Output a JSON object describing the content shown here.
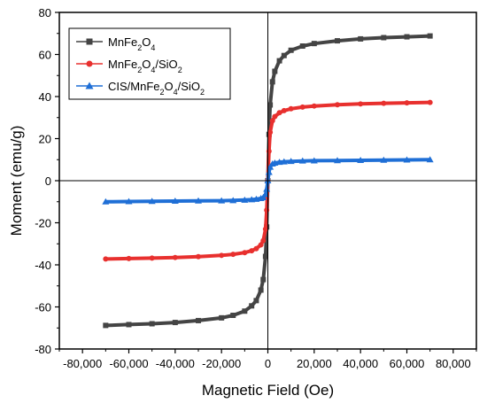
{
  "chart_data": {
    "type": "line",
    "title": "",
    "xlabel": "Magnetic Field (Oe)",
    "ylabel": "Moment (emu/g)",
    "xlim": [
      -90000,
      90000
    ],
    "ylim": [
      -80,
      80
    ],
    "xticks": [
      "-80,000",
      "-60,000",
      "-40,000",
      "-20,000",
      "0",
      "20,000",
      "40,000",
      "60,000",
      "80,000"
    ],
    "yticks": [
      "-80",
      "-60",
      "-40",
      "-20",
      "0",
      "20",
      "40",
      "60",
      "80"
    ],
    "grid": false,
    "legend_position": "top-left",
    "series": [
      {
        "name": "MnFe2O4",
        "label_parts": [
          [
            "MnFe",
            ""
          ],
          [
            "2",
            "sub"
          ],
          [
            "O",
            ""
          ],
          [
            "4",
            "sub"
          ]
        ],
        "color": "#444444",
        "marker": "square",
        "x": [
          -70000,
          -60000,
          -50000,
          -40000,
          -30000,
          -20000,
          -15000,
          -10000,
          -7000,
          -5000,
          -3000,
          -2000,
          -1000,
          -500,
          0,
          500,
          1000,
          2000,
          3000,
          5000,
          7000,
          10000,
          15000,
          20000,
          30000,
          40000,
          50000,
          60000,
          70000
        ],
        "y": [
          -68.8,
          -68.4,
          -68.0,
          -67.4,
          -66.5,
          -65.2,
          -64.0,
          -62.0,
          -59.5,
          -57.0,
          -52.0,
          -47.0,
          -36.0,
          -22.0,
          0,
          22.0,
          36.0,
          47.0,
          52.0,
          57.0,
          59.5,
          62.0,
          64.0,
          65.2,
          66.5,
          67.4,
          68.0,
          68.4,
          68.8
        ]
      },
      {
        "name": "MnFe2O4/SiO2",
        "label_parts": [
          [
            "MnFe",
            ""
          ],
          [
            "2",
            "sub"
          ],
          [
            "O",
            ""
          ],
          [
            "4",
            "sub"
          ],
          [
            "/SiO",
            ""
          ],
          [
            "2",
            "sub"
          ]
        ],
        "color": "#e8302e",
        "marker": "circle",
        "x": [
          -70000,
          -60000,
          -50000,
          -40000,
          -30000,
          -20000,
          -15000,
          -10000,
          -7000,
          -5000,
          -3000,
          -2000,
          -1000,
          -500,
          0,
          500,
          1000,
          2000,
          3000,
          5000,
          7000,
          10000,
          15000,
          20000,
          30000,
          40000,
          50000,
          60000,
          70000
        ],
        "y": [
          -37.2,
          -37.0,
          -36.8,
          -36.5,
          -36.1,
          -35.5,
          -35.0,
          -34.2,
          -33.3,
          -32.3,
          -30.5,
          -28.5,
          -23.0,
          -14.0,
          0,
          14.0,
          23.0,
          28.5,
          30.5,
          32.3,
          33.3,
          34.2,
          35.0,
          35.5,
          36.1,
          36.5,
          36.8,
          37.0,
          37.2
        ]
      },
      {
        "name": "CIS/MnFe2O4/SiO2",
        "label_parts": [
          [
            "CIS/MnFe",
            ""
          ],
          [
            "2",
            "sub"
          ],
          [
            "O",
            ""
          ],
          [
            "4",
            "sub"
          ],
          [
            "/SiO",
            ""
          ],
          [
            "2",
            "sub"
          ]
        ],
        "color": "#1f6fd6",
        "marker": "triangle",
        "x": [
          -70000,
          -60000,
          -50000,
          -40000,
          -30000,
          -20000,
          -15000,
          -10000,
          -7000,
          -5000,
          -3000,
          -2000,
          -1000,
          -500,
          0,
          500,
          1000,
          2000,
          3000,
          5000,
          7000,
          10000,
          15000,
          20000,
          30000,
          40000,
          50000,
          60000,
          70000
        ],
        "y": [
          -10.0,
          -9.9,
          -9.8,
          -9.7,
          -9.6,
          -9.5,
          -9.4,
          -9.2,
          -9.0,
          -8.8,
          -8.4,
          -8.0,
          -6.5,
          -4.0,
          0,
          4.0,
          6.5,
          8.0,
          8.4,
          8.8,
          9.0,
          9.2,
          9.4,
          9.5,
          9.6,
          9.7,
          9.8,
          9.9,
          10.0
        ]
      }
    ]
  }
}
